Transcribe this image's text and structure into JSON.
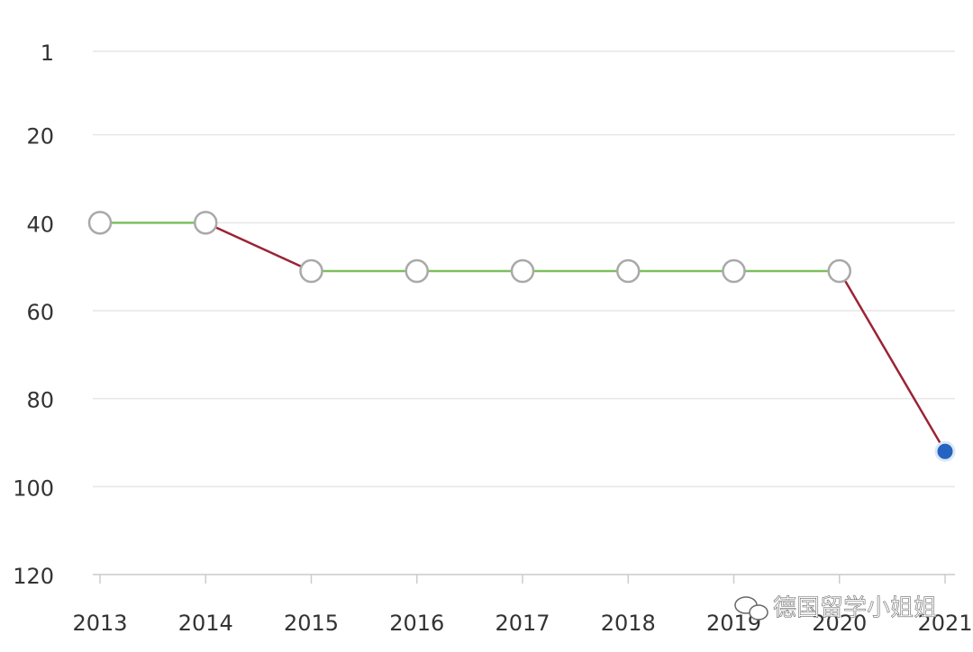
{
  "chart_data": {
    "type": "line",
    "categories": [
      "2013",
      "2014",
      "2015",
      "2016",
      "2017",
      "2018",
      "2019",
      "2020",
      "2021"
    ],
    "series": [
      {
        "color": "#9b2335",
        "values": [
          40,
          40,
          51,
          51,
          51,
          51,
          51,
          51,
          92
        ]
      }
    ],
    "flat_color": "#7cbf5f",
    "marker_color": "#a9a9a9",
    "highlight_color": "#2464c0",
    "ylim": [
      0,
      120
    ],
    "y_reversed": true,
    "yticks": [
      1,
      20,
      40,
      60,
      80,
      100,
      120
    ],
    "grid": true,
    "watermark": "德国留学小姐姐"
  }
}
